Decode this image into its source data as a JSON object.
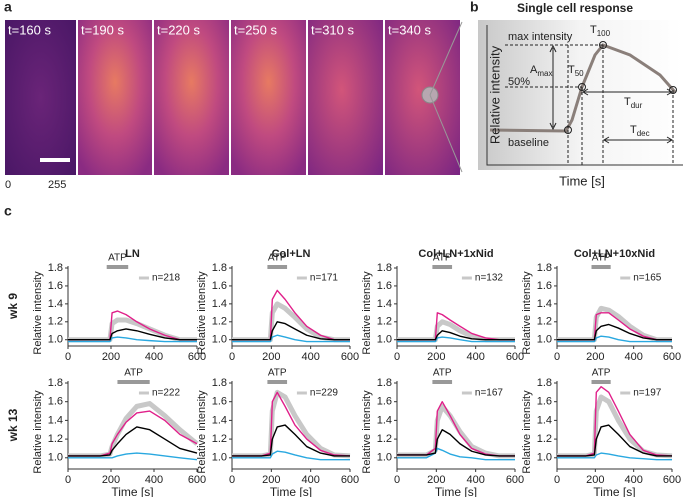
{
  "panel_a": {
    "label": "a",
    "frames": [
      "t=160 s",
      "t=190 s",
      "t=220 s",
      "t=250 s",
      "t=310 s",
      "t=340 s"
    ],
    "colorbar": {
      "min": "0",
      "max": "255"
    }
  },
  "panel_b": {
    "label": "b",
    "title": "Single cell response",
    "ylabel": "Relative intensity",
    "xlabel": "Time [s]",
    "max_intensity": "max intensity",
    "half": "50%",
    "baseline": "baseline",
    "t100": {
      "text": "T",
      "sub": "100"
    },
    "t50": {
      "text": "T",
      "sub": "50"
    },
    "amax": {
      "text": "A",
      "sub": "max"
    },
    "tdur": {
      "text": "T",
      "sub": "dur"
    },
    "tdec": {
      "text": "T",
      "sub": "dec"
    }
  },
  "panel_c": {
    "label": "c",
    "row_labels": [
      "wk 9",
      "wk 13"
    ]
  },
  "chart_data": [
    {
      "type": "line",
      "title": "LN",
      "ylabel": "Relative intensity",
      "xlim": [
        0,
        600
      ],
      "xticks": [
        0,
        200,
        400,
        600
      ],
      "ylim": [
        0.93,
        1.8
      ],
      "yticks": [
        {
          "value": 1,
          "label": "1.0"
        },
        1.2,
        1.4,
        1.6,
        1.8
      ],
      "annotation": {
        "text": "ATP",
        "start": 180,
        "end": 280
      },
      "x": [
        0,
        150,
        195,
        205,
        230,
        270,
        320,
        380,
        450,
        520,
        600
      ],
      "series": [
        {
          "name": "n=218",
          "color": "#c8c8c8",
          "values": [
            1.0,
            1.0,
            1.0,
            1.18,
            1.22,
            1.22,
            1.18,
            1.12,
            1.05,
            1.0,
            1.0
          ]
        },
        {
          "color": "#29a8e0",
          "values": [
            0.98,
            0.98,
            0.98,
            1.02,
            1.03,
            1.02,
            1.0,
            0.99,
            0.98,
            0.98,
            0.98
          ]
        },
        {
          "color": "#e0208a",
          "values": [
            1.0,
            1.0,
            1.0,
            1.3,
            1.32,
            1.28,
            1.2,
            1.12,
            1.05,
            1.0,
            1.0
          ]
        },
        {
          "color": "#000000",
          "values": [
            1.0,
            1.0,
            1.0,
            1.07,
            1.1,
            1.12,
            1.1,
            1.06,
            1.02,
            1.0,
            1.0
          ]
        }
      ]
    },
    {
      "type": "line",
      "title": "Col+LN",
      "ylabel": "Relative intensity",
      "xlim": [
        0,
        600
      ],
      "xticks": [
        0,
        200,
        400,
        600
      ],
      "ylim": [
        0.93,
        1.8
      ],
      "yticks": [
        {
          "value": 1,
          "label": "1.0"
        },
        1.2,
        1.4,
        1.6,
        1.8
      ],
      "annotation": {
        "text": "ATP",
        "start": 180,
        "end": 280
      },
      "x": [
        0,
        150,
        195,
        205,
        230,
        270,
        320,
        380,
        450,
        520,
        600
      ],
      "series": [
        {
          "name": "n=171",
          "color": "#c8c8c8",
          "values": [
            1.0,
            1.0,
            1.0,
            1.3,
            1.4,
            1.35,
            1.25,
            1.12,
            1.03,
            1.0,
            1.0
          ]
        },
        {
          "color": "#29a8e0",
          "values": [
            0.98,
            0.98,
            0.98,
            1.03,
            1.05,
            1.03,
            1.0,
            0.98,
            0.98,
            0.98,
            0.98
          ]
        },
        {
          "color": "#e0208a",
          "values": [
            1.0,
            1.0,
            1.0,
            1.45,
            1.55,
            1.45,
            1.3,
            1.15,
            1.05,
            1.0,
            1.0
          ]
        },
        {
          "color": "#000000",
          "values": [
            1.0,
            1.0,
            1.0,
            1.1,
            1.2,
            1.18,
            1.12,
            1.05,
            1.01,
            1.0,
            1.0
          ]
        }
      ]
    },
    {
      "type": "line",
      "title": "Col+LN+1xNid",
      "ylabel": "Relative intensity",
      "xlim": [
        0,
        600
      ],
      "xticks": [
        0,
        200,
        400,
        600
      ],
      "ylim": [
        0.93,
        1.8
      ],
      "yticks": [
        {
          "value": 1,
          "label": "1.0"
        },
        1.2,
        1.4,
        1.6,
        1.8
      ],
      "annotation": {
        "text": "ATP",
        "start": 180,
        "end": 280
      },
      "x": [
        0,
        150,
        195,
        205,
        230,
        270,
        320,
        380,
        450,
        520,
        600
      ],
      "series": [
        {
          "name": "n=132",
          "color": "#c8c8c8",
          "values": [
            1.0,
            1.0,
            1.0,
            1.15,
            1.2,
            1.17,
            1.1,
            1.04,
            1.0,
            1.0,
            1.0
          ]
        },
        {
          "color": "#29a8e0",
          "values": [
            0.98,
            0.98,
            0.98,
            1.02,
            1.03,
            1.02,
            1.0,
            0.98,
            0.98,
            0.98,
            0.98
          ]
        },
        {
          "color": "#e0208a",
          "values": [
            1.0,
            1.0,
            1.0,
            1.3,
            1.28,
            1.22,
            1.15,
            1.07,
            1.02,
            1.0,
            1.0
          ]
        },
        {
          "color": "#000000",
          "values": [
            1.0,
            1.0,
            1.0,
            1.05,
            1.1,
            1.08,
            1.04,
            1.01,
            1.0,
            1.0,
            1.0
          ]
        }
      ]
    },
    {
      "type": "line",
      "title": "Col+LN+10xNid",
      "ylabel": "Relative intensity",
      "xlim": [
        0,
        600
      ],
      "xticks": [
        0,
        200,
        400,
        600
      ],
      "ylim": [
        0.93,
        1.8
      ],
      "yticks": [
        {
          "value": 1,
          "label": "1.0"
        },
        1.2,
        1.4,
        1.6,
        1.8
      ],
      "annotation": {
        "text": "ATP",
        "start": 180,
        "end": 280
      },
      "x": [
        0,
        150,
        195,
        205,
        230,
        270,
        320,
        380,
        450,
        520,
        600
      ],
      "series": [
        {
          "name": "n=165",
          "color": "#c8c8c8",
          "values": [
            1.0,
            1.0,
            1.0,
            1.25,
            1.35,
            1.33,
            1.26,
            1.15,
            1.05,
            1.0,
            1.0
          ]
        },
        {
          "color": "#29a8e0",
          "values": [
            0.98,
            0.98,
            0.98,
            1.02,
            1.04,
            1.03,
            1.0,
            0.98,
            0.98,
            0.98,
            0.98
          ]
        },
        {
          "color": "#e0208a",
          "values": [
            1.0,
            1.0,
            1.0,
            1.28,
            1.3,
            1.3,
            1.22,
            1.12,
            1.04,
            1.0,
            1.0
          ]
        },
        {
          "color": "#000000",
          "values": [
            1.0,
            1.0,
            1.0,
            1.1,
            1.15,
            1.17,
            1.13,
            1.07,
            1.02,
            1.0,
            1.0
          ]
        }
      ]
    },
    {
      "type": "line",
      "ylabel": "Relative intensity",
      "xlabel": "Time [s]",
      "xlim": [
        0,
        600
      ],
      "xticks": [
        0,
        200,
        400,
        600
      ],
      "ylim": [
        0.88,
        1.8
      ],
      "yticks": [
        {
          "value": 1,
          "label": "1.0"
        },
        1.2,
        1.4,
        1.6,
        1.8
      ],
      "annotation": {
        "text": "ATP",
        "start": 230,
        "end": 380
      },
      "x": [
        0,
        150,
        195,
        205,
        230,
        270,
        320,
        380,
        450,
        520,
        600
      ],
      "series": [
        {
          "name": "n=222",
          "color": "#c8c8c8",
          "values": [
            1.02,
            1.02,
            1.04,
            1.12,
            1.25,
            1.42,
            1.55,
            1.58,
            1.45,
            1.3,
            1.15
          ]
        },
        {
          "color": "#29a8e0",
          "values": [
            1.0,
            1.0,
            1.0,
            1.0,
            1.02,
            1.04,
            1.05,
            1.04,
            1.02,
            1.0,
            0.98
          ]
        },
        {
          "color": "#e0208a",
          "values": [
            1.02,
            1.02,
            1.05,
            1.15,
            1.25,
            1.38,
            1.48,
            1.5,
            1.4,
            1.25,
            1.15
          ]
        },
        {
          "color": "#000000",
          "values": [
            1.02,
            1.02,
            1.03,
            1.08,
            1.15,
            1.25,
            1.33,
            1.3,
            1.2,
            1.1,
            1.05
          ]
        }
      ]
    },
    {
      "type": "line",
      "ylabel": "Relative intensity",
      "xlabel": "Time [s]",
      "xlim": [
        0,
        600
      ],
      "xticks": [
        0,
        200,
        400,
        600
      ],
      "ylim": [
        0.88,
        1.8
      ],
      "yticks": [
        {
          "value": 1,
          "label": "1.0"
        },
        1.2,
        1.4,
        1.6,
        1.8
      ],
      "annotation": {
        "text": "ATP",
        "start": 180,
        "end": 280
      },
      "x": [
        0,
        150,
        195,
        205,
        230,
        270,
        320,
        380,
        450,
        520,
        600
      ],
      "series": [
        {
          "name": "n=229",
          "color": "#c8c8c8",
          "values": [
            1.02,
            1.02,
            1.04,
            1.5,
            1.7,
            1.65,
            1.45,
            1.25,
            1.1,
            1.03,
            1.02
          ]
        },
        {
          "color": "#29a8e0",
          "values": [
            1.0,
            1.0,
            1.0,
            1.04,
            1.07,
            1.06,
            1.03,
            1.0,
            0.98,
            0.98,
            0.98
          ]
        },
        {
          "color": "#e0208a",
          "values": [
            1.02,
            1.02,
            1.05,
            1.6,
            1.7,
            1.55,
            1.35,
            1.2,
            1.08,
            1.03,
            1.02
          ]
        },
        {
          "color": "#000000",
          "values": [
            1.02,
            1.02,
            1.03,
            1.2,
            1.33,
            1.35,
            1.25,
            1.12,
            1.05,
            1.02,
            1.02
          ]
        }
      ]
    },
    {
      "type": "line",
      "ylabel": "Relative intensity",
      "xlabel": "Time [s]",
      "xlim": [
        0,
        600
      ],
      "xticks": [
        0,
        200,
        400,
        600
      ],
      "ylim": [
        0.88,
        1.8
      ],
      "yticks": [
        {
          "value": 1,
          "label": "1.0"
        },
        1.2,
        1.4,
        1.6,
        1.8
      ],
      "annotation": {
        "text": "ATP",
        "start": 180,
        "end": 280
      },
      "x": [
        0,
        150,
        195,
        205,
        230,
        270,
        320,
        380,
        450,
        520,
        600
      ],
      "series": [
        {
          "name": "n=167",
          "color": "#c8c8c8",
          "values": [
            1.03,
            1.03,
            1.08,
            1.4,
            1.55,
            1.45,
            1.28,
            1.12,
            1.05,
            1.02,
            1.02
          ]
        },
        {
          "color": "#29a8e0",
          "values": [
            1.0,
            1.0,
            1.05,
            1.1,
            1.08,
            1.04,
            1.01,
            1.0,
            0.98,
            0.98,
            0.98
          ]
        },
        {
          "color": "#e0208a",
          "values": [
            1.03,
            1.03,
            1.1,
            1.5,
            1.6,
            1.45,
            1.25,
            1.1,
            1.04,
            1.02,
            1.02
          ]
        },
        {
          "color": "#000000",
          "values": [
            1.03,
            1.03,
            1.05,
            1.2,
            1.3,
            1.25,
            1.15,
            1.07,
            1.03,
            1.02,
            1.02
          ]
        }
      ]
    },
    {
      "type": "line",
      "ylabel": "Relative intensity",
      "xlabel": "Time [s]",
      "xlim": [
        0,
        600
      ],
      "xticks": [
        0,
        200,
        400,
        600
      ],
      "ylim": [
        0.88,
        1.8
      ],
      "yticks": [
        {
          "value": 1,
          "label": "1.0"
        },
        1.2,
        1.4,
        1.6,
        1.8
      ],
      "annotation": {
        "text": "ATP",
        "start": 180,
        "end": 280
      },
      "x": [
        0,
        150,
        195,
        205,
        230,
        270,
        320,
        380,
        450,
        520,
        600
      ],
      "series": [
        {
          "name": "n=197",
          "color": "#c8c8c8",
          "values": [
            1.02,
            1.02,
            1.04,
            1.5,
            1.65,
            1.6,
            1.4,
            1.2,
            1.07,
            1.03,
            1.02
          ]
        },
        {
          "color": "#29a8e0",
          "values": [
            1.0,
            1.0,
            1.0,
            1.03,
            1.05,
            1.04,
            1.02,
            1.0,
            0.99,
            0.98,
            0.98
          ]
        },
        {
          "color": "#e0208a",
          "values": [
            1.02,
            1.02,
            1.05,
            1.7,
            1.76,
            1.7,
            1.5,
            1.25,
            1.08,
            1.03,
            1.02
          ]
        },
        {
          "color": "#000000",
          "values": [
            1.02,
            1.02,
            1.03,
            1.2,
            1.33,
            1.35,
            1.25,
            1.12,
            1.05,
            1.02,
            1.02
          ]
        }
      ]
    }
  ]
}
